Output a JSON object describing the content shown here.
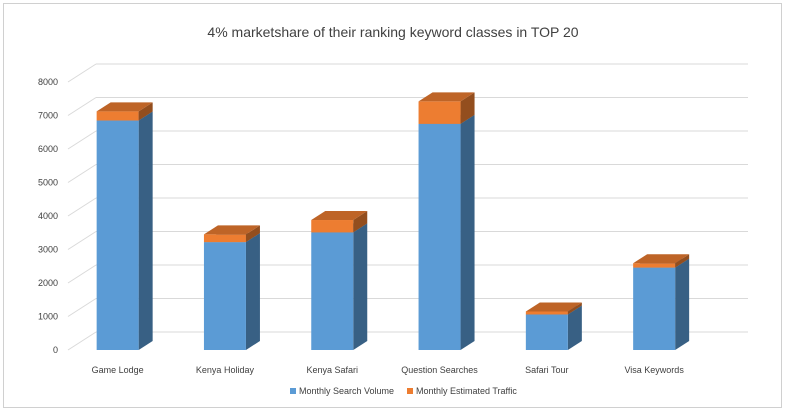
{
  "chart_data": {
    "type": "bar",
    "stacked": true,
    "three_d": true,
    "title": "4% marketshare of their ranking keyword classes in TOP 20",
    "categories": [
      "Game Lodge",
      "Kenya Holiday",
      "Kenya Safari",
      "Question Searches",
      "Safari Tour",
      "Visa Keywords"
    ],
    "series": [
      {
        "name": "Monthly Search Volume",
        "values": [
          6850,
          3220,
          3510,
          6750,
          1060,
          2460
        ],
        "color": "#5b9bd5"
      },
      {
        "name": "Monthly Estimated Traffic",
        "values": [
          275,
          230,
          370,
          670,
          90,
          130
        ],
        "color": "#ed7d31"
      }
    ],
    "yticks": [
      "0",
      "1000",
      "2000",
      "3000",
      "4000",
      "5000",
      "6000",
      "7000",
      "8000"
    ],
    "ylim": [
      0,
      8000
    ],
    "grid": true,
    "legend": "bottom"
  }
}
